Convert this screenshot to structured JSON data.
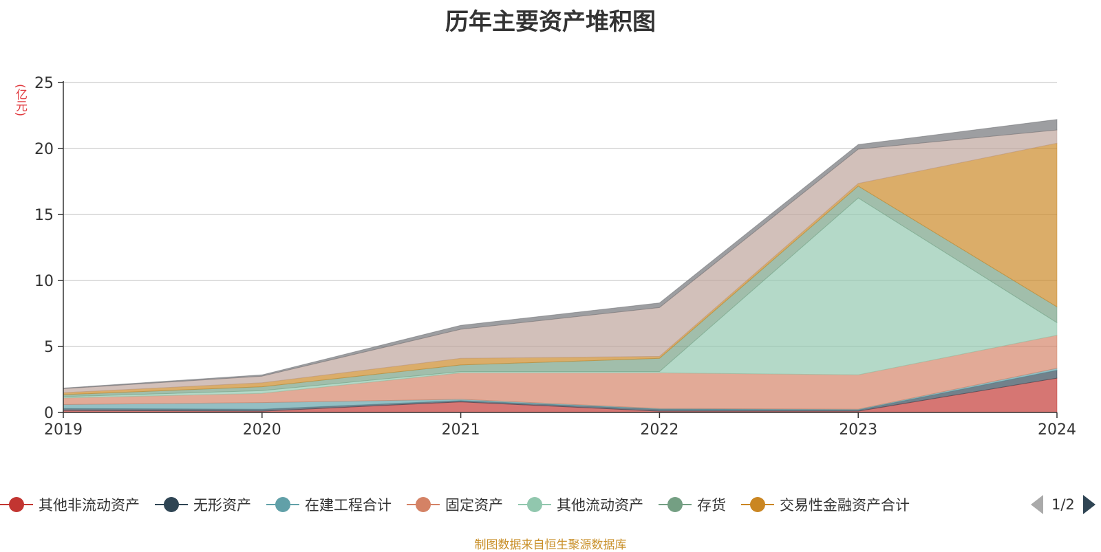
{
  "chart_data": {
    "type": "area",
    "stacked": true,
    "title": "历年主要资产堆积图",
    "unit_label": "(亿元)",
    "x": [
      "2019",
      "2020",
      "2021",
      "2022",
      "2023",
      "2024"
    ],
    "ylim": [
      0,
      25
    ],
    "yticks": [
      0,
      5,
      10,
      15,
      20,
      25
    ],
    "grid": true,
    "series": [
      {
        "name": "其他非流动资产",
        "color": "#c23531",
        "values": [
          0.15,
          0.1,
          0.8,
          0.1,
          0.1,
          2.6
        ]
      },
      {
        "name": "无形资产",
        "color": "#2f4554",
        "values": [
          0.15,
          0.15,
          0.1,
          0.15,
          0.1,
          0.6
        ]
      },
      {
        "name": "在建工程合计",
        "color": "#61a0a8",
        "values": [
          0.3,
          0.5,
          0.1,
          0.05,
          0.05,
          0.15
        ]
      },
      {
        "name": "固定资产",
        "color": "#d48265",
        "values": [
          0.5,
          0.7,
          2.0,
          2.7,
          2.6,
          2.5
        ]
      },
      {
        "name": "其他流动资产",
        "color": "#91c7ae",
        "values": [
          0.1,
          0.2,
          0.1,
          0.1,
          13.4,
          0.95
        ]
      },
      {
        "name": "存货",
        "color": "#749f83",
        "values": [
          0.15,
          0.3,
          0.5,
          1.0,
          0.9,
          1.2
        ]
      },
      {
        "name": "交易性金融资产合计",
        "color": "#ca8622",
        "values": [
          0.15,
          0.3,
          0.5,
          0.15,
          0.2,
          12.4
        ]
      },
      {
        "name": "",
        "color": "#bda29a",
        "values": [
          0.3,
          0.5,
          2.2,
          3.7,
          2.6,
          1.0
        ]
      },
      {
        "name": "",
        "color": "#6e7074",
        "values": [
          0.05,
          0.1,
          0.3,
          0.35,
          0.35,
          0.8
        ]
      }
    ]
  },
  "legend": {
    "items": [
      {
        "label": "其他非流动资产",
        "color": "#c23531"
      },
      {
        "label": "无形资产",
        "color": "#2f4554"
      },
      {
        "label": "在建工程合计",
        "color": "#61a0a8"
      },
      {
        "label": "固定资产",
        "color": "#d48265"
      },
      {
        "label": "其他流动资产",
        "color": "#91c7ae"
      },
      {
        "label": "存货",
        "color": "#749f83"
      },
      {
        "label": "交易性金融资产合计",
        "color": "#ca8622"
      }
    ],
    "page_indicator": "1/2"
  },
  "source_note": "制图数据来自恒生聚源数据库"
}
